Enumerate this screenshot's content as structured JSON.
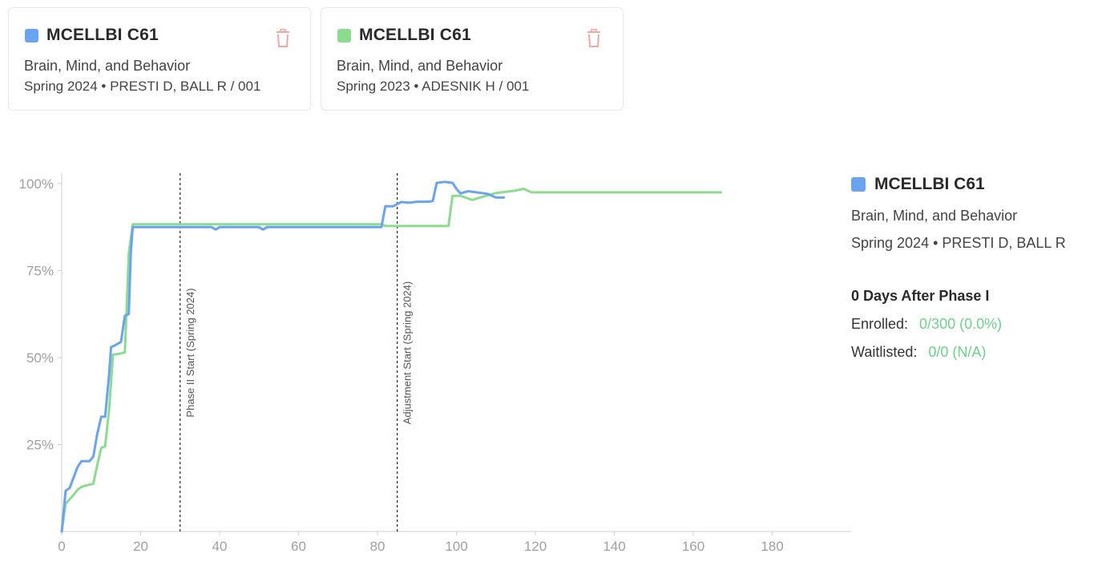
{
  "cards": [
    {
      "code": "MCELLBI C61",
      "name": "Brain, Mind, and Behavior",
      "meta": "Spring 2024 • PRESTI D, BALL R / 001",
      "color": "#6aa3ef",
      "icon": "trash-icon"
    },
    {
      "code": "MCELLBI C61",
      "name": "Brain, Mind, and Behavior",
      "meta": "Spring 2023 • ADESNIK H / 001",
      "color": "#8cdc8f",
      "icon": "trash-icon"
    }
  ],
  "panel": {
    "code": "MCELLBI C61",
    "name": "Brain, Mind, and Behavior",
    "meta": "Spring 2024 • PRESTI D, BALL R",
    "color": "#6aa3ef",
    "days_heading": "0 Days After Phase I",
    "enrolled_label": "Enrolled:",
    "enrolled_value": "0/300 (0.0%)",
    "waitlisted_label": "Waitlisted:",
    "waitlisted_value": "0/0 (N/A)"
  },
  "chart_data": {
    "type": "line",
    "xlim": [
      0,
      200
    ],
    "ylim": [
      0,
      100
    ],
    "x_ticks": [
      "0",
      "20",
      "40",
      "60",
      "80",
      "100",
      "120",
      "140",
      "160",
      "180"
    ],
    "y_ticks": [
      "25%",
      "50%",
      "75%",
      "100%"
    ],
    "markers": [
      {
        "x": 30,
        "label": "Phase II Start (Spring 2024)"
      },
      {
        "x": 85,
        "label": "Adjustment Start (Spring 2024)"
      }
    ],
    "series": [
      {
        "term": "Spring 2024",
        "color": "#6aa3ef",
        "points": [
          [
            0,
            0
          ],
          [
            1,
            11.7
          ],
          [
            2,
            12.5
          ],
          [
            3,
            15.5
          ],
          [
            4,
            18.5
          ],
          [
            5,
            20.2
          ],
          [
            7,
            20.2
          ],
          [
            8,
            21.5
          ],
          [
            9,
            28
          ],
          [
            10,
            33
          ],
          [
            11,
            33
          ],
          [
            12,
            45
          ],
          [
            12.5,
            53
          ],
          [
            13.5,
            53.5
          ],
          [
            15,
            54.5
          ],
          [
            16,
            62
          ],
          [
            17,
            62.5
          ],
          [
            17.5,
            80
          ],
          [
            18,
            87.5
          ],
          [
            38,
            87.5
          ],
          [
            39,
            86.8
          ],
          [
            40,
            87.5
          ],
          [
            50,
            87.5
          ],
          [
            51,
            86.8
          ],
          [
            52,
            87.5
          ],
          [
            81,
            87.5
          ],
          [
            82,
            93.5
          ],
          [
            84,
            93.5
          ],
          [
            86,
            94.7
          ],
          [
            88,
            94.5
          ],
          [
            90,
            94.8
          ],
          [
            93,
            94.8
          ],
          [
            94,
            95
          ],
          [
            95,
            100.2
          ],
          [
            97,
            100.5
          ],
          [
            99,
            100.2
          ],
          [
            100,
            98.5
          ],
          [
            101,
            97.2
          ],
          [
            103,
            97.8
          ],
          [
            105,
            97.5
          ],
          [
            107,
            97.2
          ],
          [
            108,
            97
          ],
          [
            110,
            96
          ],
          [
            112,
            96
          ]
        ]
      },
      {
        "term": "Spring 2023",
        "color": "#8cdc8f",
        "points": [
          [
            0,
            0
          ],
          [
            1,
            8
          ],
          [
            3,
            10.5
          ],
          [
            4,
            12
          ],
          [
            5,
            12.8
          ],
          [
            6,
            13.2
          ],
          [
            8,
            13.7
          ],
          [
            9,
            19
          ],
          [
            10,
            24
          ],
          [
            11,
            24.5
          ],
          [
            12,
            35
          ],
          [
            13,
            50.8
          ],
          [
            15,
            51.2
          ],
          [
            16,
            51.5
          ],
          [
            17,
            80
          ],
          [
            18,
            88.3
          ],
          [
            81,
            88.3
          ],
          [
            82,
            87.8
          ],
          [
            84,
            87.8
          ],
          [
            98,
            87.8
          ],
          [
            99,
            96.5
          ],
          [
            101,
            96.5
          ],
          [
            104,
            95.3
          ],
          [
            106,
            96
          ],
          [
            110,
            97.3
          ],
          [
            115,
            98
          ],
          [
            117,
            98.5
          ],
          [
            119,
            97.5
          ],
          [
            167,
            97.5
          ]
        ]
      }
    ]
  }
}
